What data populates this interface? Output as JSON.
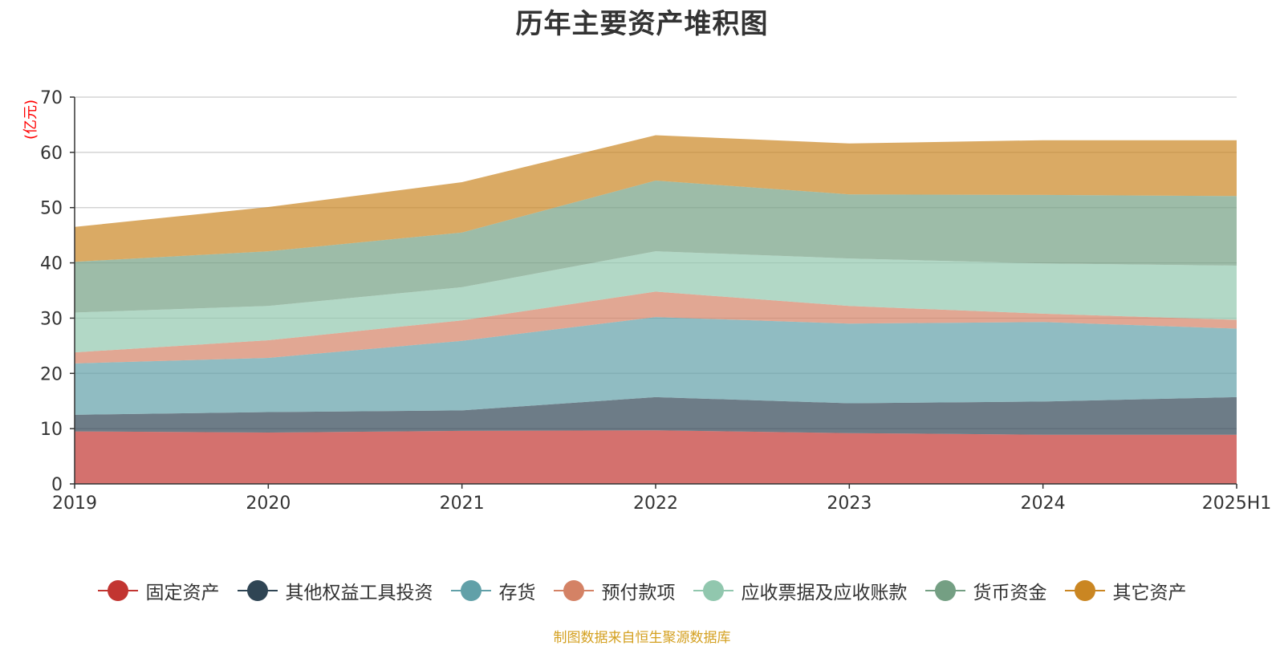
{
  "chart_data": {
    "type": "area",
    "stacked": true,
    "title": "历年主要资产堆积图",
    "unit_label": "(亿元)",
    "x": [
      "2019",
      "2020",
      "2021",
      "2022",
      "2023",
      "2024",
      "2025H1"
    ],
    "ylim": [
      0,
      70
    ],
    "yticks": [
      0,
      10,
      20,
      30,
      40,
      50,
      60,
      70
    ],
    "grid": true,
    "legend_position": "bottom",
    "series": [
      {
        "name": "固定资产",
        "color": "#c23531",
        "values": [
          9.5,
          9.3,
          9.6,
          9.7,
          9.2,
          8.9,
          8.9
        ]
      },
      {
        "name": "其他权益工具投资",
        "color": "#2f4554",
        "values": [
          3.0,
          3.7,
          3.7,
          6.0,
          5.4,
          6.0,
          6.8
        ]
      },
      {
        "name": "存货",
        "color": "#61a0a8",
        "values": [
          9.3,
          9.8,
          12.6,
          14.5,
          14.4,
          14.4,
          12.4
        ]
      },
      {
        "name": "预付款项",
        "color": "#d48265",
        "values": [
          2.0,
          3.2,
          3.7,
          4.6,
          3.2,
          1.5,
          1.6
        ]
      },
      {
        "name": "应收票据及应收账款",
        "color": "#91c7ae",
        "values": [
          7.2,
          6.2,
          6.0,
          7.3,
          8.6,
          9.1,
          9.8
        ]
      },
      {
        "name": "货币资金",
        "color": "#749f83",
        "values": [
          9.2,
          9.9,
          9.9,
          12.8,
          11.6,
          12.4,
          12.6
        ]
      },
      {
        "name": "其它资产",
        "color": "#ca8622",
        "values": [
          6.3,
          8.0,
          9.1,
          8.2,
          9.2,
          9.9,
          10.1
        ]
      }
    ]
  },
  "footer": {
    "source": "制图数据来自恒生聚源数据库"
  }
}
